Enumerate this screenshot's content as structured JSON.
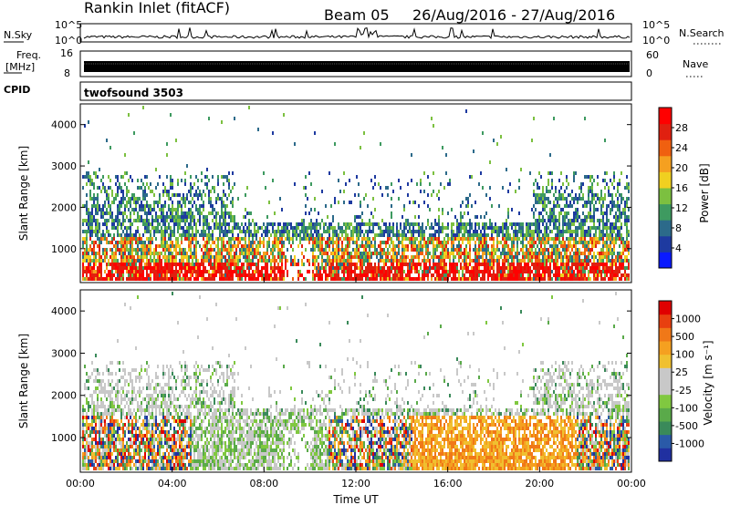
{
  "header": {
    "station": "Rankin Inlet (fitACF)",
    "beam": "Beam 05",
    "date_range": "26/Aug/2016 - 27/Aug/2016"
  },
  "strips": {
    "nsky_label": "N.Sky",
    "nsearch_label": "N.Search",
    "nsky_ticks": [
      "10^5",
      "10^0"
    ],
    "nsearch_ticks": [
      "10^5",
      "10^0"
    ],
    "freq_label_1": "Freq.",
    "freq_label_2": "[MHz]",
    "freq_ticks": [
      "16",
      "8"
    ],
    "nave_label": "Nave",
    "nave_ticks": [
      "60",
      "0"
    ],
    "cpid_label": "CPID",
    "cpid_value": "twofsound 3503"
  },
  "chart_data": [
    {
      "type": "heatmap",
      "name": "power",
      "ylabel": "Slant Range [km]",
      "ylim": [
        180,
        4500
      ],
      "yticks": [
        "4000",
        "3000",
        "2000",
        "1000"
      ],
      "yticks_values": [
        4000,
        3000,
        2000,
        1000
      ],
      "colorbar_label": "Power [dB]",
      "colorbar_ticks": [
        "28",
        "24",
        "20",
        "16",
        "12",
        "8",
        "4"
      ],
      "colorbar_colors": [
        "#0a1aff",
        "#1e3aa0",
        "#2c6a8a",
        "#3e9a60",
        "#7cc040",
        "#f0d020",
        "#f5a020",
        "#f06010",
        "#e02010",
        "#ff0000"
      ]
    },
    {
      "type": "heatmap",
      "name": "velocity",
      "ylabel": "Slant Range [km]",
      "ylim": [
        180,
        4500
      ],
      "yticks": [
        "4000",
        "3000",
        "2000",
        "1000"
      ],
      "yticks_values": [
        4000,
        3000,
        2000,
        1000
      ],
      "colorbar_label": "Velocity [m s⁻¹]",
      "colorbar_ticks": [
        "1000",
        "500",
        "100",
        "25",
        "-25",
        "-100",
        "-500",
        "-1000"
      ],
      "colorbar_colors": [
        "#2030a0",
        "#2a5aa8",
        "#3a8a5a",
        "#5aaa4a",
        "#80c840",
        "#c8c8c8",
        "#c8c8c8",
        "#f0c030",
        "#f5a020",
        "#f07818",
        "#e84010",
        "#e00000"
      ]
    }
  ],
  "x_axis": {
    "ticks": [
      "00:00",
      "04:00",
      "08:00",
      "12:00",
      "16:00",
      "20:00",
      "00:00"
    ],
    "label": "Time UT"
  }
}
